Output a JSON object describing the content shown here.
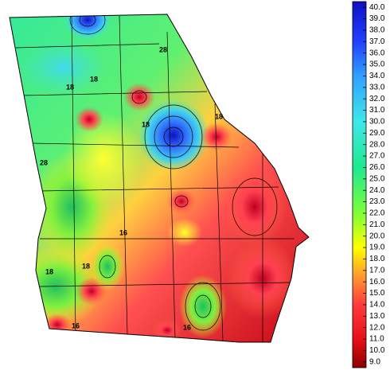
{
  "map": {
    "colorbar": {
      "zlim": [
        8.5,
        40.5
      ],
      "ticks": [
        {
          "value": 9,
          "label": "9.0"
        },
        {
          "value": 10,
          "label": "10.0"
        },
        {
          "value": 11,
          "label": "11.0"
        },
        {
          "value": 12,
          "label": "12.0"
        },
        {
          "value": 13,
          "label": "13.0"
        },
        {
          "value": 14,
          "label": "14.0"
        },
        {
          "value": 15,
          "label": "15.0"
        },
        {
          "value": 16,
          "label": "16.0"
        },
        {
          "value": 17,
          "label": "17.0"
        },
        {
          "value": 18,
          "label": "18.0"
        },
        {
          "value": 19,
          "label": "19.0"
        },
        {
          "value": 20,
          "label": "20.0"
        },
        {
          "value": 21,
          "label": "21.0"
        },
        {
          "value": 22,
          "label": "22.0"
        },
        {
          "value": 23,
          "label": "23.0"
        },
        {
          "value": 24,
          "label": "24.0"
        },
        {
          "value": 25,
          "label": "25.0"
        },
        {
          "value": 26,
          "label": "26.0"
        },
        {
          "value": 27,
          "label": "27.0"
        },
        {
          "value": 28,
          "label": "28.0"
        },
        {
          "value": 29,
          "label": "29.0"
        },
        {
          "value": 30,
          "label": "30.0"
        },
        {
          "value": 31,
          "label": "31.0"
        },
        {
          "value": 32,
          "label": "32.0"
        },
        {
          "value": 33,
          "label": "33.0"
        },
        {
          "value": 34,
          "label": "34.0"
        },
        {
          "value": 35,
          "label": "35.0"
        },
        {
          "value": 36,
          "label": "36.0"
        },
        {
          "value": 37,
          "label": "37.0"
        },
        {
          "value": 38,
          "label": "38.0"
        },
        {
          "value": 39,
          "label": "39.0"
        },
        {
          "value": 40,
          "label": "40.0"
        }
      ],
      "colormap": [
        {
          "value": 8.5,
          "color": "#8b0000"
        },
        {
          "value": 11,
          "color": "#e8101a"
        },
        {
          "value": 14,
          "color": "#ff3b3b"
        },
        {
          "value": 16.5,
          "color": "#ff9a30"
        },
        {
          "value": 19,
          "color": "#ffff00"
        },
        {
          "value": 22,
          "color": "#7fff3a"
        },
        {
          "value": 26,
          "color": "#20e890"
        },
        {
          "value": 30,
          "color": "#40e8e8"
        },
        {
          "value": 34,
          "color": "#30a0ff"
        },
        {
          "value": 37,
          "color": "#2040ff"
        },
        {
          "value": 40.5,
          "color": "#1010c0"
        }
      ]
    },
    "contour_labels": [
      "28",
      "18",
      "18",
      "18",
      "28",
      "18",
      "16",
      "18",
      "18",
      "16",
      "16"
    ]
  }
}
